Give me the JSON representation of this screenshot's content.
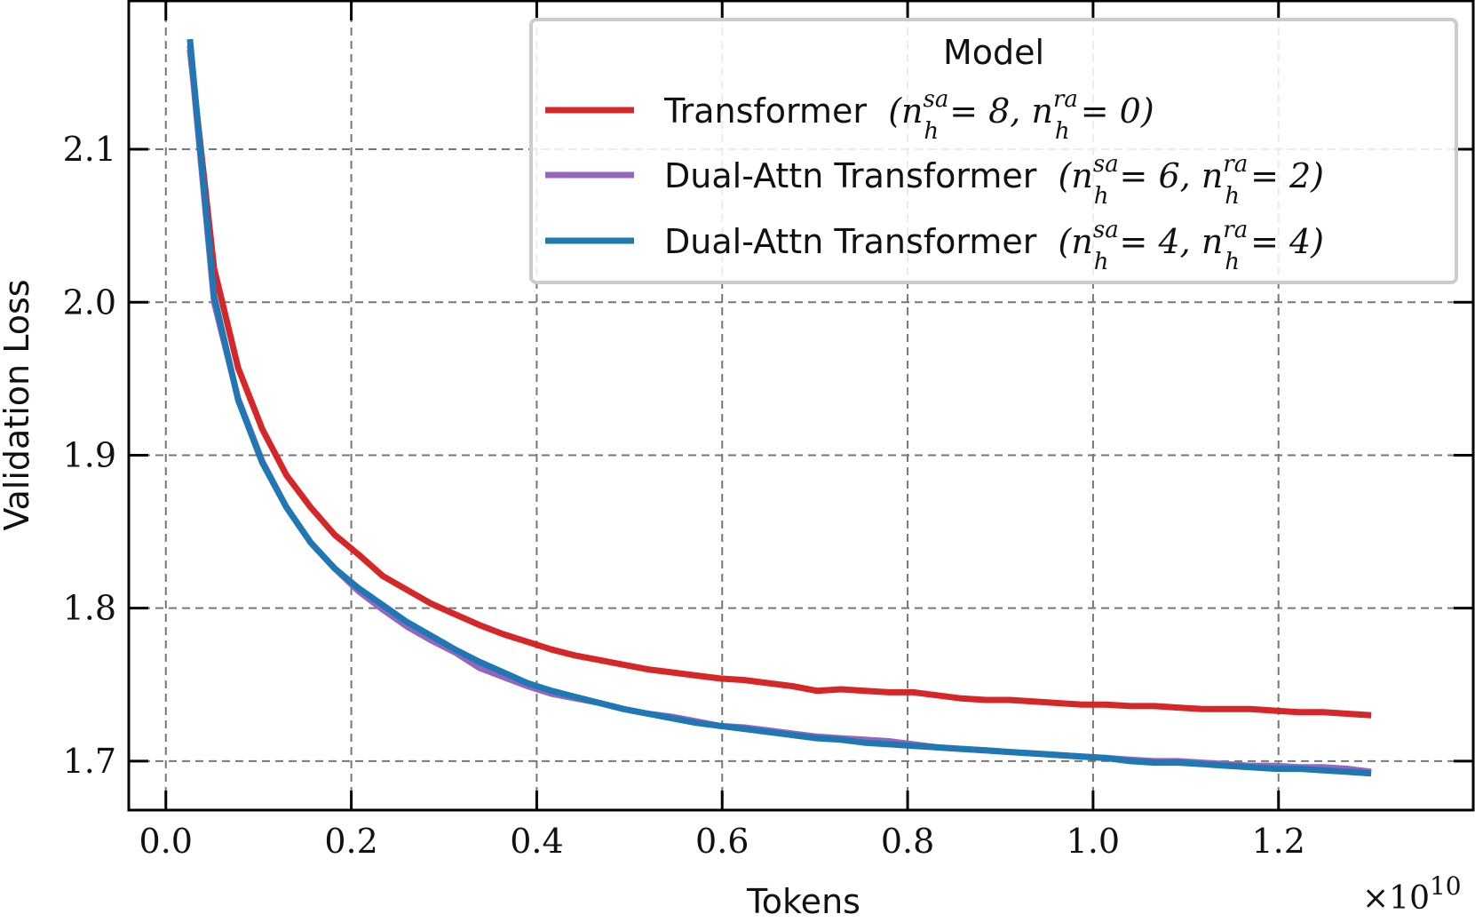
{
  "chart_data": {
    "type": "line",
    "title": "",
    "xlabel": "Tokens",
    "ylabel": "Validation Loss",
    "x_scale_label": "×10",
    "x_scale_exponent": "10",
    "xlim": [
      -0.04,
      1.41
    ],
    "ylim": [
      1.668,
      2.197
    ],
    "x_ticks": [
      0.0,
      0.2,
      0.4,
      0.6,
      0.8,
      1.0,
      1.2
    ],
    "x_tick_labels": [
      "0.0",
      "0.2",
      "0.4",
      "0.6",
      "0.8",
      "1.0",
      "1.2"
    ],
    "y_ticks": [
      1.7,
      1.8,
      1.9,
      2.0,
      2.1
    ],
    "y_tick_labels": [
      "1.7",
      "1.8",
      "1.9",
      "2.0",
      "2.1"
    ],
    "grid": true,
    "legend": {
      "title": "Model",
      "placement": "top-right"
    },
    "x": [
      0.026,
      0.052,
      0.078,
      0.104,
      0.13,
      0.156,
      0.182,
      0.208,
      0.234,
      0.26,
      0.286,
      0.312,
      0.338,
      0.364,
      0.39,
      0.416,
      0.442,
      0.468,
      0.494,
      0.52,
      0.546,
      0.572,
      0.598,
      0.624,
      0.65,
      0.676,
      0.702,
      0.728,
      0.754,
      0.78,
      0.806,
      0.832,
      0.858,
      0.884,
      0.91,
      0.936,
      0.962,
      0.988,
      1.014,
      1.04,
      1.066,
      1.092,
      1.118,
      1.144,
      1.17,
      1.196,
      1.222,
      1.248,
      1.274,
      1.3
    ],
    "series": [
      {
        "name": "Transformer",
        "label_params": "(n_h^sa = 8, n_h^ra = 0)",
        "color": "#d62728",
        "values": [
          2.165,
          2.022,
          1.957,
          1.917,
          1.887,
          1.866,
          1.848,
          1.835,
          1.821,
          1.812,
          1.803,
          1.796,
          1.789,
          1.783,
          1.778,
          1.773,
          1.769,
          1.766,
          1.763,
          1.76,
          1.758,
          1.756,
          1.754,
          1.753,
          1.751,
          1.749,
          1.746,
          1.747,
          1.746,
          1.745,
          1.745,
          1.743,
          1.741,
          1.74,
          1.74,
          1.739,
          1.738,
          1.737,
          1.737,
          1.736,
          1.736,
          1.735,
          1.734,
          1.734,
          1.734,
          1.733,
          1.732,
          1.732,
          1.731,
          1.73
        ]
      },
      {
        "name": "Dual-Attn Transformer",
        "label_params": "(n_h^sa = 6, n_h^ra = 2)",
        "color": "#9467bd",
        "values": [
          2.168,
          2.0,
          1.937,
          1.896,
          1.866,
          1.843,
          1.826,
          1.811,
          1.799,
          1.788,
          1.779,
          1.771,
          1.761,
          1.755,
          1.749,
          1.744,
          1.741,
          1.738,
          1.734,
          1.731,
          1.729,
          1.726,
          1.723,
          1.722,
          1.72,
          1.718,
          1.716,
          1.715,
          1.714,
          1.713,
          1.711,
          1.709,
          1.708,
          1.707,
          1.706,
          1.705,
          1.704,
          1.703,
          1.702,
          1.701,
          1.7,
          1.7,
          1.699,
          1.698,
          1.697,
          1.697,
          1.696,
          1.696,
          1.695,
          1.693
        ]
      },
      {
        "name": "Dual-Attn Transformer",
        "label_params": "(n_h^sa = 4, n_h^ra = 4)",
        "color": "#1f77b4",
        "values": [
          2.172,
          2.004,
          1.936,
          1.895,
          1.866,
          1.843,
          1.826,
          1.813,
          1.802,
          1.791,
          1.782,
          1.773,
          1.765,
          1.758,
          1.751,
          1.746,
          1.742,
          1.738,
          1.734,
          1.731,
          1.728,
          1.725,
          1.723,
          1.721,
          1.719,
          1.717,
          1.715,
          1.714,
          1.712,
          1.711,
          1.71,
          1.709,
          1.708,
          1.707,
          1.706,
          1.705,
          1.704,
          1.703,
          1.702,
          1.7,
          1.699,
          1.699,
          1.698,
          1.697,
          1.696,
          1.695,
          1.695,
          1.694,
          1.693,
          1.692
        ]
      }
    ]
  },
  "legend_items": [
    {
      "prefix": "Transformer",
      "sa": "sa",
      "ra": "ra",
      "h": "h",
      "n": "n",
      "sa_value": "8",
      "ra_value": "0"
    },
    {
      "prefix": "Dual-Attn Transformer",
      "sa": "sa",
      "ra": "ra",
      "h": "h",
      "n": "n",
      "sa_value": "6",
      "ra_value": "2"
    },
    {
      "prefix": "Dual-Attn Transformer",
      "sa": "sa",
      "ra": "ra",
      "h": "h",
      "n": "n",
      "sa_value": "4",
      "ra_value": "4"
    }
  ]
}
